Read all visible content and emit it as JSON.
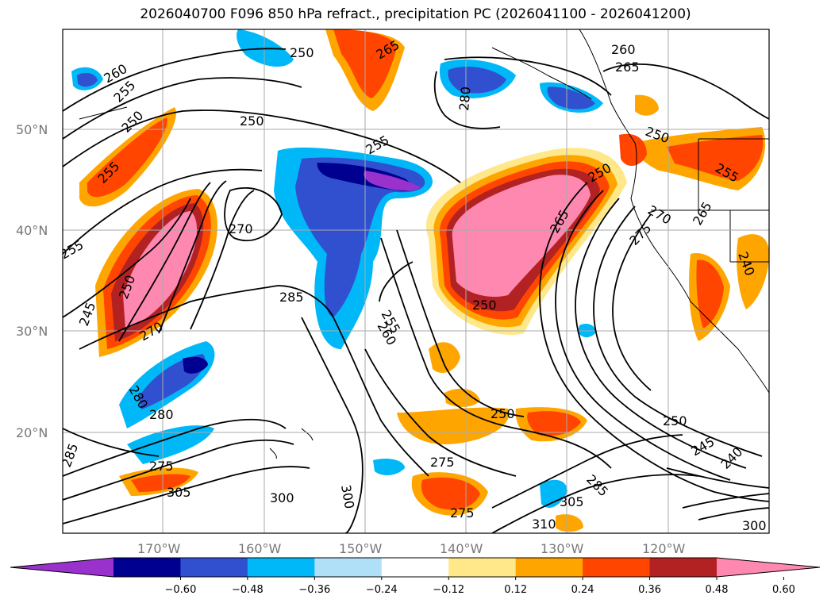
{
  "title": "2026040700 F096 850 hPa refract., precipitation PC (2026041100 - 2026041200)",
  "map": {
    "lat_labels": [
      "50°N",
      "40°N",
      "30°N",
      "20°N"
    ],
    "lon_labels": [
      "170°W",
      "160°W",
      "150°W",
      "140°W",
      "130°W",
      "120°W"
    ],
    "gridline_color": "#aaaaaa",
    "contour_labels": [
      "260",
      "255",
      "250",
      "255",
      "250",
      "255",
      "270",
      "245",
      "250",
      "270",
      "285",
      "280",
      "280",
      "285",
      "275",
      "305",
      "300",
      "265",
      "255",
      "250",
      "280",
      "265",
      "255",
      "260",
      "265",
      "250",
      "250",
      "250",
      "255",
      "270",
      "275",
      "265",
      "240",
      "250",
      "245",
      "240",
      "250",
      "275",
      "285",
      "305",
      "310",
      "300",
      "275",
      "300",
      "260"
    ]
  },
  "colorbar": {
    "ticks": [
      "−0.60",
      "−0.48",
      "−0.36",
      "−0.24",
      "−0.12",
      "0.12",
      "0.24",
      "0.36",
      "0.48",
      "0.60"
    ],
    "colors": [
      "#9932cc",
      "#000090",
      "#3050d0",
      "#00b8f8",
      "#b0e0f8",
      "#ffffff",
      "#ffe88a",
      "#ffa500",
      "#ff4500",
      "#b22222",
      "#ff88b0"
    ],
    "extend": "both"
  }
}
